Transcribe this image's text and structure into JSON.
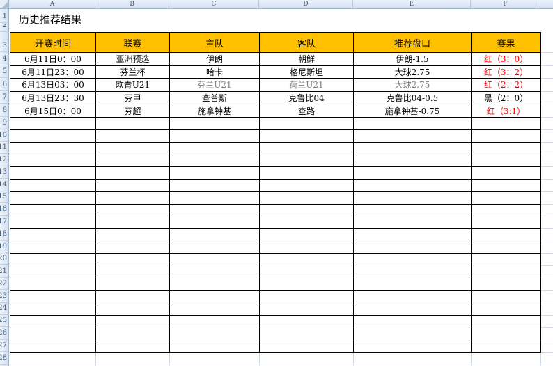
{
  "title": "历史推荐结果",
  "column_letters": [
    "A",
    "B",
    "C",
    "D",
    "E",
    "F"
  ],
  "row_numbers": [
    "1",
    "2",
    "3",
    "4",
    "5",
    "6",
    "7",
    "8",
    "9",
    "10",
    "11",
    "12",
    "13",
    "14",
    "15",
    "16",
    "17",
    "18",
    "19",
    "20",
    "21",
    "22",
    "23",
    "24",
    "25",
    "26",
    "27",
    "28"
  ],
  "colors": {
    "header_bg": "#FFC000",
    "result_red": "#FF0000",
    "result_black": "#000000",
    "muted_text": "#808080",
    "gridline": "#D0D7E5"
  },
  "table": {
    "headers": [
      "开赛时间",
      "联赛",
      "主队",
      "客队",
      "推荐盘口",
      "赛果"
    ],
    "rows": [
      {
        "time": "6月11日0：00",
        "league": "亚洲预选",
        "home": "伊朗",
        "away": "朝鲜",
        "handicap": "伊朗-1.5",
        "result": "红（3：0）",
        "result_color": "#FF0000",
        "detail_color": "#000000"
      },
      {
        "time": "6月11日23：00",
        "league": "芬兰杯",
        "home": "哈卡",
        "away": "格尼斯坦",
        "handicap": "大球2.75",
        "result": "红（3：2）",
        "result_color": "#FF0000",
        "detail_color": "#000000"
      },
      {
        "time": "6月13日03：00",
        "league": "欧青U21",
        "home": "芬兰U21",
        "away": "荷兰U21",
        "handicap": "大球2.75",
        "result": "红（2：2）",
        "result_color": "#FF0000",
        "detail_color": "#808080"
      },
      {
        "time": "6月13日23：30",
        "league": "芬甲",
        "home": "查普斯",
        "away": "克鲁比04",
        "handicap": "克鲁比04-0.5",
        "result": "黑（2：0）",
        "result_color": "#000000",
        "detail_color": "#000000"
      },
      {
        "time": "6月15日0：00",
        "league": "芬超",
        "home": "施拿钟基",
        "away": "查路",
        "handicap": "施拿钟基-0.75",
        "result": "红（3:1）",
        "result_color": "#FF0000",
        "detail_color": "#000000"
      }
    ],
    "empty_row_count": 19
  }
}
